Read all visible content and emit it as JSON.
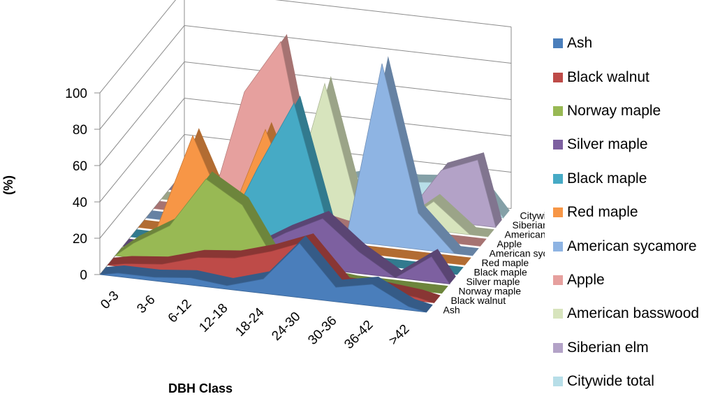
{
  "chart_data": {
    "type": "area",
    "view": "3d",
    "xlabel": "DBH Class",
    "ylabel": "(%)",
    "ylim": [
      0,
      100
    ],
    "yticks": [
      0,
      20,
      40,
      60,
      80,
      100
    ],
    "categories": [
      "0-3",
      "3-6",
      "6-12",
      "12-18",
      "18-24",
      "24-30",
      "30-36",
      "36-42",
      ">42"
    ],
    "legend_position": "right",
    "series": [
      {
        "name": "Ash",
        "color": "#4a7ebb",
        "values": [
          2,
          2,
          4,
          2,
          8,
          30,
          8,
          12,
          2
        ]
      },
      {
        "name": "Black walnut",
        "color": "#be4b48",
        "values": [
          2,
          4,
          10,
          12,
          18,
          26,
          4,
          4,
          2
        ]
      },
      {
        "name": "Norway maple",
        "color": "#98b954",
        "values": [
          8,
          20,
          48,
          36,
          4,
          2,
          0,
          0,
          0
        ]
      },
      {
        "name": "Silver maple",
        "color": "#7d60a0",
        "values": [
          0,
          0,
          2,
          6,
          18,
          28,
          12,
          0,
          14
        ]
      },
      {
        "name": "Black maple",
        "color": "#46aac5",
        "values": [
          0,
          0,
          4,
          46,
          84,
          14,
          0,
          0,
          0
        ]
      },
      {
        "name": "Red maple",
        "color": "#f79646",
        "values": [
          0,
          54,
          10,
          62,
          14,
          0,
          0,
          0,
          0
        ]
      },
      {
        "name": "American sycamore",
        "color": "#8eb4e3",
        "values": [
          0,
          0,
          0,
          0,
          8,
          0,
          100,
          20,
          0
        ]
      },
      {
        "name": "Apple",
        "color": "#e6a09e",
        "values": [
          0,
          0,
          70,
          100,
          4,
          0,
          0,
          0,
          0
        ]
      },
      {
        "name": "American basswood",
        "color": "#d7e4bd",
        "values": [
          0,
          0,
          0,
          2,
          74,
          0,
          0,
          16,
          0
        ]
      },
      {
        "name": "Siberian elm",
        "color": "#b3a2c7",
        "values": [
          0,
          0,
          0,
          0,
          0,
          0,
          0,
          28,
          36
        ]
      },
      {
        "name": "Citywide total",
        "color": "#b7dee8",
        "values": [
          0,
          0,
          0,
          2,
          10,
          16,
          14,
          16,
          12
        ]
      }
    ]
  }
}
